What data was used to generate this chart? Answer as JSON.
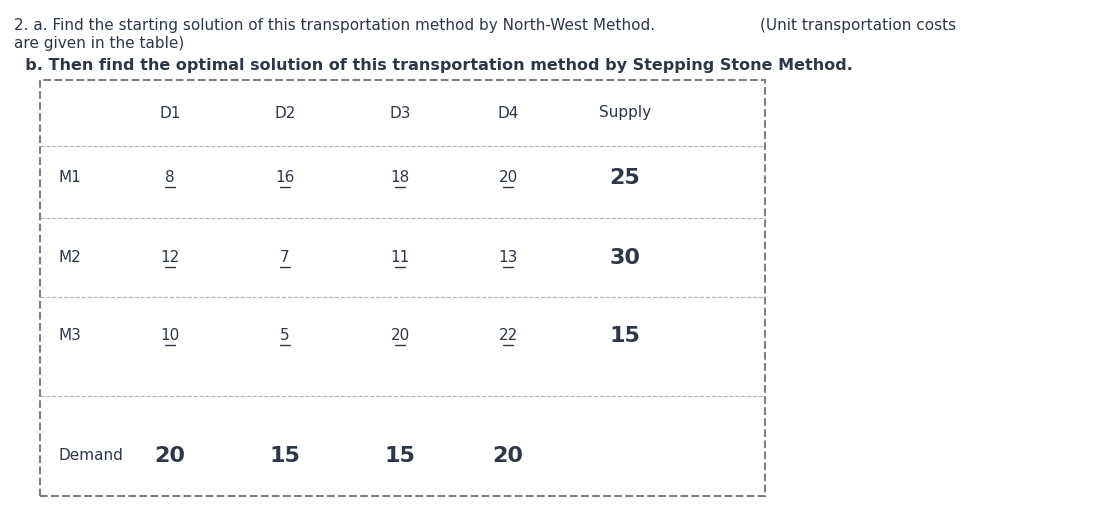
{
  "title_line1": "2. a. Find the starting solution of this transportation method by North-West Method.",
  "title_right": "(Unit transportation costs",
  "title_line2": "are given in the table)",
  "subtitle": "  b. Then find the optimal solution of this transportation method by Stepping Stone Method.",
  "col_headers": [
    "D1",
    "D2",
    "D3",
    "D4",
    "Supply"
  ],
  "row_headers": [
    "M1",
    "M2",
    "M3",
    "Demand"
  ],
  "cost_data": [
    [
      "8",
      "16",
      "18",
      "20",
      "25"
    ],
    [
      "12",
      "7",
      "11",
      "13",
      "30"
    ],
    [
      "10",
      "5",
      "20",
      "22",
      "15"
    ],
    [
      "20",
      "15",
      "15",
      "20",
      ""
    ]
  ],
  "cost_fontsize": 11,
  "supply_fontsize": 16,
  "demand_fontsize": 16,
  "header_fontsize": 11,
  "text_color": "#2d3748",
  "background_color": "#ffffff",
  "table_border_color": "#7f7f7f"
}
